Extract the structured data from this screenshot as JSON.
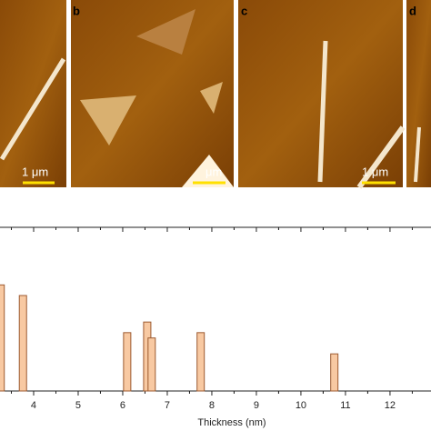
{
  "panels": [
    {
      "label": null,
      "scale_label": "1 μm"
    },
    {
      "label": "b",
      "scale_label": "μm"
    },
    {
      "label": "c",
      "scale_label": "1 μm"
    },
    {
      "label": "d",
      "scale_label": null
    }
  ],
  "chart_data": {
    "type": "bar",
    "x_label": "Thickness (nm)",
    "x": [
      3.26,
      3.76,
      6.1,
      6.55,
      6.65,
      7.75,
      10.75
    ],
    "values": [
      10,
      9,
      5.5,
      6.5,
      5,
      5.5,
      3.5
    ],
    "color": "#f8c9a2",
    "edge_color": "#9c5a30",
    "xlim": [
      3.245,
      12.92
    ],
    "xticks": [
      4,
      5,
      6,
      7,
      8,
      9,
      10,
      11,
      12
    ],
    "ylim": [
      0,
      12
    ]
  }
}
